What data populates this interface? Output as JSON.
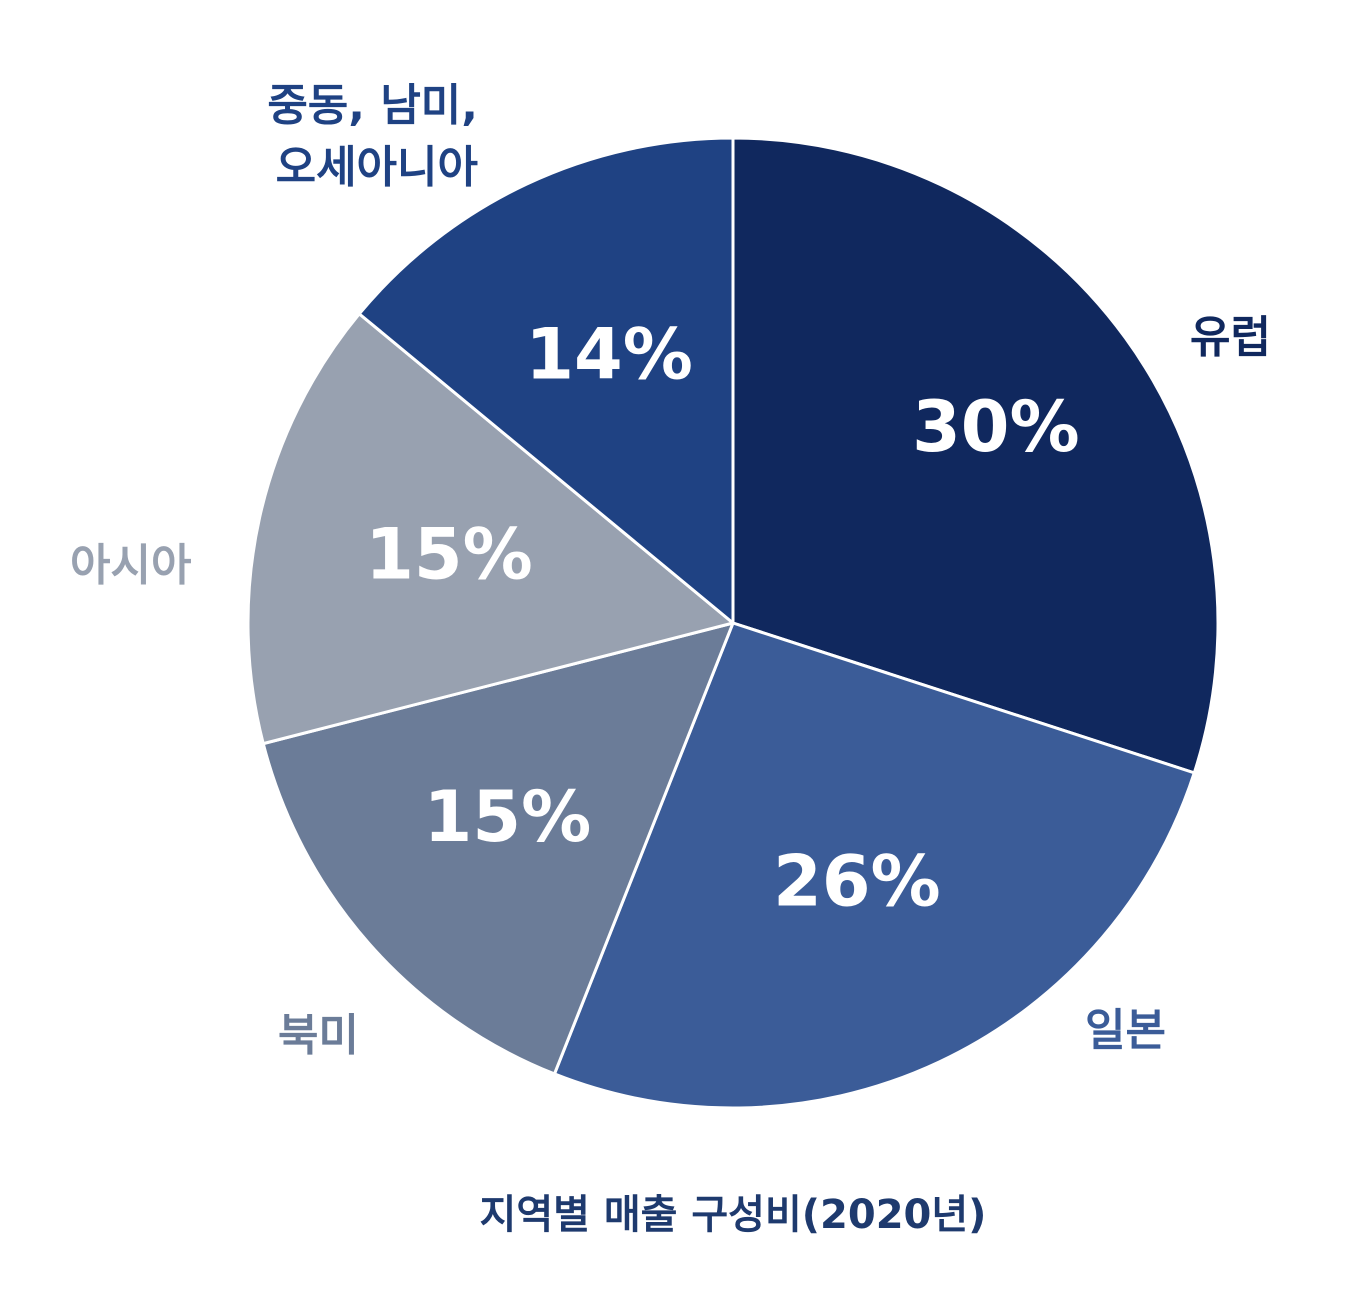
{
  "chart_data": {
    "type": "pie",
    "title": "지역별 매출 구성비(2020년)",
    "slices": [
      {
        "name": "유럽",
        "value": 30,
        "label": "30%",
        "color": "#10285e",
        "label_color": "#10285e"
      },
      {
        "name": "일본",
        "value": 26,
        "label": "26%",
        "color": "#3b5c98",
        "label_color": "#3b5c98"
      },
      {
        "name": "북미",
        "value": 15,
        "label": "15%",
        "color": "#6b7c98",
        "label_color": "#6b7c98"
      },
      {
        "name": "아시아",
        "value": 15,
        "label": "15%",
        "color": "#98a1b0",
        "label_color": "#98a1b0"
      },
      {
        "name": "중동, 남미, 오세아니아",
        "name_lines": [
          "중동, 남미,",
          "오세아니아"
        ],
        "value": 14,
        "label": "14%",
        "color": "#1f4283",
        "label_color": "#1f4283"
      }
    ],
    "start": "12 o'clock",
    "direction": "clockwise",
    "legend": "none"
  }
}
